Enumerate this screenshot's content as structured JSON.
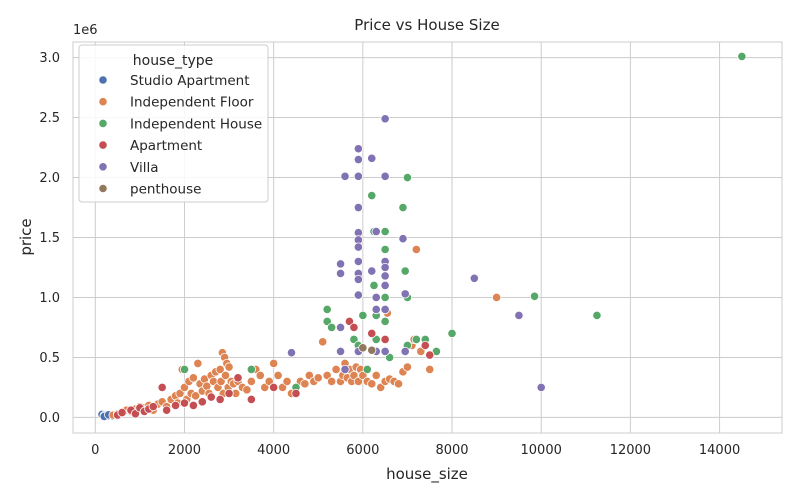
{
  "chart_data": {
    "type": "scatter",
    "title": "Price vs House Size",
    "xlabel": "house_size",
    "ylabel": "price",
    "y_scale_label": "1e6",
    "xlim": [
      -500,
      15400
    ],
    "ylim": [
      -130000,
      3130000
    ],
    "x_ticks": [
      0,
      2000,
      4000,
      6000,
      8000,
      10000,
      12000,
      14000
    ],
    "y_ticks": [
      0,
      500000,
      1000000,
      1500000,
      2000000,
      2500000,
      3000000
    ],
    "y_tick_labels": [
      "0.0",
      "0.5",
      "1.0",
      "1.5",
      "2.0",
      "2.5",
      "3.0"
    ],
    "grid": true,
    "legend": {
      "title": "house_type",
      "placement": "top-left"
    },
    "series": [
      {
        "name": "Studio Apartment",
        "color": "#4c72b0",
        "points": [
          [
            150,
            25000
          ],
          [
            200,
            15000
          ],
          [
            250,
            20000
          ],
          [
            300,
            12000
          ],
          [
            350,
            18000
          ],
          [
            400,
            10000
          ],
          [
            450,
            15000
          ],
          [
            500,
            12000
          ],
          [
            200,
            8000
          ],
          [
            300,
            22000
          ]
        ]
      },
      {
        "name": "Independent Floor",
        "color": "#dd8452",
        "points": [
          [
            400,
            20000
          ],
          [
            500,
            30000
          ],
          [
            600,
            45000
          ],
          [
            700,
            60000
          ],
          [
            800,
            50000
          ],
          [
            900,
            70000
          ],
          [
            1000,
            90000
          ],
          [
            1100,
            80000
          ],
          [
            1200,
            100000
          ],
          [
            1300,
            60000
          ],
          [
            1400,
            110000
          ],
          [
            1500,
            130000
          ],
          [
            1600,
            90000
          ],
          [
            1700,
            150000
          ],
          [
            1800,
            180000
          ],
          [
            1850,
            120000
          ],
          [
            1900,
            200000
          ],
          [
            1950,
            400000
          ],
          [
            2000,
            250000
          ],
          [
            2050,
            150000
          ],
          [
            2100,
            300000
          ],
          [
            2150,
            200000
          ],
          [
            2200,
            330000
          ],
          [
            2250,
            180000
          ],
          [
            2300,
            450000
          ],
          [
            2350,
            280000
          ],
          [
            2400,
            220000
          ],
          [
            2450,
            320000
          ],
          [
            2500,
            260000
          ],
          [
            2550,
            200000
          ],
          [
            2600,
            350000
          ],
          [
            2650,
            300000
          ],
          [
            2700,
            380000
          ],
          [
            2750,
            250000
          ],
          [
            2800,
            400000
          ],
          [
            2820,
            300000
          ],
          [
            2850,
            540000
          ],
          [
            2870,
            200000
          ],
          [
            2900,
            500000
          ],
          [
            2920,
            350000
          ],
          [
            2950,
            450000
          ],
          [
            2980,
            250000
          ],
          [
            3000,
            420000
          ],
          [
            3050,
            300000
          ],
          [
            3100,
            280000
          ],
          [
            3150,
            200000
          ],
          [
            3200,
            300000
          ],
          [
            3300,
            250000
          ],
          [
            3400,
            230000
          ],
          [
            3500,
            300000
          ],
          [
            3600,
            400000
          ],
          [
            3700,
            350000
          ],
          [
            3800,
            250000
          ],
          [
            3900,
            300000
          ],
          [
            4000,
            450000
          ],
          [
            4100,
            350000
          ],
          [
            4200,
            250000
          ],
          [
            4300,
            300000
          ],
          [
            4400,
            200000
          ],
          [
            4500,
            250000
          ],
          [
            4600,
            300000
          ],
          [
            4700,
            280000
          ],
          [
            4800,
            350000
          ],
          [
            4900,
            300000
          ],
          [
            5000,
            330000
          ],
          [
            5100,
            630000
          ],
          [
            5200,
            350000
          ],
          [
            5300,
            300000
          ],
          [
            5400,
            400000
          ],
          [
            5500,
            300000
          ],
          [
            5550,
            350000
          ],
          [
            5600,
            450000
          ],
          [
            5650,
            330000
          ],
          [
            5700,
            400000
          ],
          [
            5750,
            300000
          ],
          [
            5800,
            350000
          ],
          [
            5850,
            420000
          ],
          [
            5900,
            300000
          ],
          [
            5950,
            400000
          ],
          [
            6000,
            350000
          ],
          [
            6100,
            300000
          ],
          [
            6200,
            280000
          ],
          [
            6300,
            350000
          ],
          [
            6400,
            250000
          ],
          [
            6500,
            300000
          ],
          [
            6550,
            870000
          ],
          [
            6600,
            320000
          ],
          [
            6700,
            300000
          ],
          [
            6800,
            280000
          ],
          [
            6900,
            380000
          ],
          [
            7000,
            420000
          ],
          [
            7100,
            600000
          ],
          [
            7150,
            650000
          ],
          [
            7200,
            1400000
          ],
          [
            7300,
            550000
          ],
          [
            7500,
            400000
          ],
          [
            9000,
            1000000
          ]
        ]
      },
      {
        "name": "Independent House",
        "color": "#55a868",
        "points": [
          [
            2000,
            400000
          ],
          [
            3500,
            400000
          ],
          [
            4500,
            250000
          ],
          [
            5200,
            900000
          ],
          [
            5200,
            800000
          ],
          [
            5300,
            750000
          ],
          [
            5800,
            650000
          ],
          [
            5900,
            600000
          ],
          [
            6000,
            850000
          ],
          [
            6100,
            400000
          ],
          [
            6200,
            1850000
          ],
          [
            6250,
            1550000
          ],
          [
            6250,
            1100000
          ],
          [
            6300,
            850000
          ],
          [
            6300,
            650000
          ],
          [
            6500,
            1550000
          ],
          [
            6500,
            1400000
          ],
          [
            6500,
            1000000
          ],
          [
            6500,
            800000
          ],
          [
            6600,
            500000
          ],
          [
            6900,
            1750000
          ],
          [
            6950,
            1220000
          ],
          [
            7000,
            2000000
          ],
          [
            7000,
            1000000
          ],
          [
            7000,
            600000
          ],
          [
            7200,
            650000
          ],
          [
            7400,
            650000
          ],
          [
            7650,
            550000
          ],
          [
            8000,
            700000
          ],
          [
            9850,
            1010000
          ],
          [
            11250,
            850000
          ],
          [
            14500,
            3010000
          ]
        ]
      },
      {
        "name": "Apartment",
        "color": "#c44e52",
        "points": [
          [
            500,
            20000
          ],
          [
            600,
            40000
          ],
          [
            800,
            60000
          ],
          [
            900,
            30000
          ],
          [
            1000,
            80000
          ],
          [
            1100,
            50000
          ],
          [
            1200,
            70000
          ],
          [
            1300,
            90000
          ],
          [
            1500,
            250000
          ],
          [
            1600,
            60000
          ],
          [
            1800,
            100000
          ],
          [
            2000,
            120000
          ],
          [
            2200,
            100000
          ],
          [
            2400,
            130000
          ],
          [
            2600,
            170000
          ],
          [
            2800,
            150000
          ],
          [
            3000,
            200000
          ],
          [
            3200,
            330000
          ],
          [
            3500,
            150000
          ],
          [
            4000,
            250000
          ],
          [
            4500,
            200000
          ],
          [
            5700,
            800000
          ],
          [
            5800,
            750000
          ],
          [
            6200,
            700000
          ],
          [
            6500,
            650000
          ],
          [
            7400,
            600000
          ],
          [
            7500,
            520000
          ]
        ]
      },
      {
        "name": "Villa",
        "color": "#8172b3",
        "points": [
          [
            4400,
            540000
          ],
          [
            5500,
            1280000
          ],
          [
            5500,
            1200000
          ],
          [
            5500,
            750000
          ],
          [
            5500,
            550000
          ],
          [
            5600,
            400000
          ],
          [
            5600,
            2010000
          ],
          [
            5900,
            2240000
          ],
          [
            5900,
            2150000
          ],
          [
            5900,
            2010000
          ],
          [
            5900,
            1750000
          ],
          [
            5900,
            1540000
          ],
          [
            5900,
            1480000
          ],
          [
            5900,
            1420000
          ],
          [
            5900,
            1300000
          ],
          [
            5900,
            1200000
          ],
          [
            5900,
            1150000
          ],
          [
            5900,
            1020000
          ],
          [
            5900,
            550000
          ],
          [
            6200,
            2160000
          ],
          [
            6200,
            1220000
          ],
          [
            6300,
            1550000
          ],
          [
            6300,
            1000000
          ],
          [
            6300,
            900000
          ],
          [
            6300,
            550000
          ],
          [
            6500,
            2490000
          ],
          [
            6500,
            2010000
          ],
          [
            6500,
            1300000
          ],
          [
            6500,
            1250000
          ],
          [
            6500,
            1180000
          ],
          [
            6500,
            1100000
          ],
          [
            6500,
            900000
          ],
          [
            6500,
            550000
          ],
          [
            6900,
            1490000
          ],
          [
            6950,
            1030000
          ],
          [
            6950,
            550000
          ],
          [
            8500,
            1160000
          ],
          [
            9500,
            850000
          ],
          [
            10000,
            250000
          ]
        ]
      },
      {
        "name": "penthouse",
        "color": "#937860",
        "points": [
          [
            6000,
            580000
          ],
          [
            6200,
            560000
          ]
        ]
      }
    ]
  }
}
